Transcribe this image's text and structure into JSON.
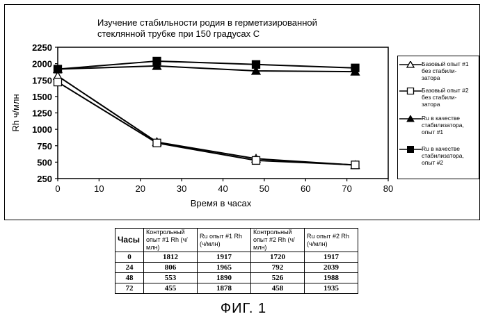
{
  "chart_data": {
    "type": "line",
    "title_lines": [
      "Изучение стабильности родия в герметизированной",
      "стеклянной трубке при 150 градусах С"
    ],
    "xlabel": "Время в часах",
    "ylabel": "Rh ч/млн",
    "xlim": [
      0,
      80
    ],
    "ylim": [
      250,
      2250
    ],
    "xticks": [
      "0",
      "10",
      "20",
      "30",
      "40",
      "50",
      "60",
      "70",
      "80"
    ],
    "yticks": [
      "250",
      "500",
      "750",
      "1000",
      "1250",
      "1500",
      "1750",
      "2000",
      "2250"
    ],
    "grid": false,
    "legend_position": "right",
    "x": [
      0,
      24,
      48,
      72
    ],
    "series": [
      {
        "name": "Базовый опыт #1 без стабили-затора",
        "label_lines": [
          "Базовый опыт #1",
          "без стабили-",
          "затора"
        ],
        "marker": "triangle-open",
        "values": [
          1812,
          806,
          553,
          455
        ]
      },
      {
        "name": "Базовый опыт #2 без стабили-затора",
        "label_lines": [
          "Базовый опыт #2",
          "без стабили-",
          "затора"
        ],
        "marker": "square-open",
        "values": [
          1720,
          792,
          526,
          458
        ]
      },
      {
        "name": "Ru в качестве стабилизатора, опыт #1",
        "label_lines": [
          "Ru в качестве",
          "стабилизатора,",
          "опыт #1"
        ],
        "marker": "triangle-filled",
        "values": [
          1917,
          1965,
          1890,
          1878
        ]
      },
      {
        "name": "Ru в качестве стабилизатора, опыт #2",
        "label_lines": [
          "Ru в качестве",
          "стабилизатора,",
          "опыт #2"
        ],
        "marker": "square-filled",
        "values": [
          1917,
          2039,
          1988,
          1935
        ]
      }
    ]
  },
  "table": {
    "headers": [
      "Часы",
      "Контрольный опыт #1 Rh (ч/млн)",
      "Ru опыт #1 Rh (ч/млн)",
      "Контрольный опыт #2 Rh (ч/млн)",
      "Ru опыт #2 Rh (ч/млн)"
    ],
    "rows": [
      [
        "0",
        "1812",
        "1917",
        "1720",
        "1917"
      ],
      [
        "24",
        "806",
        "1965",
        "792",
        "2039"
      ],
      [
        "48",
        "553",
        "1890",
        "526",
        "1988"
      ],
      [
        "72",
        "455",
        "1878",
        "458",
        "1935"
      ]
    ]
  },
  "caption": "ФИГ. 1"
}
